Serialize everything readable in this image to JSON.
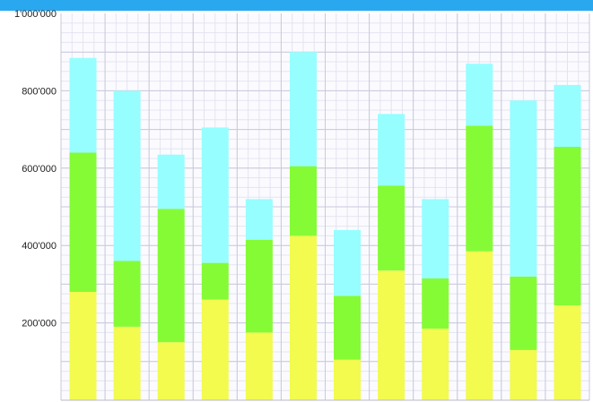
{
  "window": {
    "accent_bar_color": "#2aa8ef"
  },
  "chart_data": {
    "type": "bar",
    "stacked": true,
    "title": "",
    "xlabel": "",
    "ylabel": "",
    "ylim": [
      0,
      1000000
    ],
    "y_ticks": [
      200000,
      400000,
      600000,
      800000,
      1000000
    ],
    "y_tick_labels": [
      "200'000",
      "400'000",
      "600'000",
      "800'000",
      "1'000'000"
    ],
    "grid": true,
    "legend": "none",
    "categories": [
      "",
      "",
      "",
      "",
      "",
      "",
      "",
      "",
      "",
      "",
      "",
      ""
    ],
    "series": [
      {
        "color": "#f2fb4e",
        "values": [
          280000,
          190000,
          150000,
          260000,
          175000,
          425000,
          105000,
          335000,
          185000,
          385000,
          130000,
          245000
        ]
      },
      {
        "color": "#85fb36",
        "values": [
          360000,
          170000,
          345000,
          95000,
          240000,
          180000,
          165000,
          220000,
          130000,
          325000,
          190000,
          410000
        ]
      },
      {
        "color": "#96feff",
        "values": [
          245000,
          440000,
          140000,
          350000,
          105000,
          295000,
          170000,
          185000,
          205000,
          160000,
          455000,
          160000
        ]
      }
    ]
  }
}
